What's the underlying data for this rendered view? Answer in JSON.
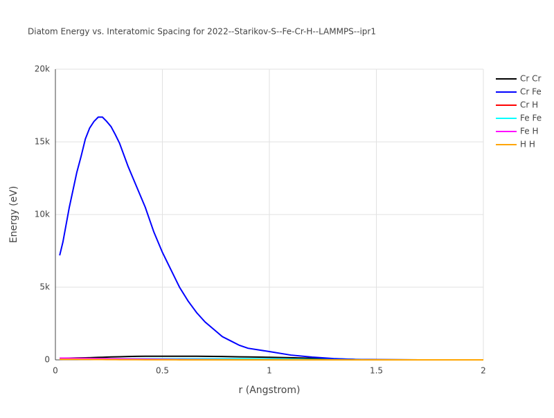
{
  "chart_data": {
    "type": "line",
    "title": "Diatom Energy vs. Interatomic Spacing for 2022--Starikov-S--Fe-Cr-H--LAMMPS--ipr1",
    "x_label": "r (Angstrom)",
    "y_label": "Energy (eV)",
    "x": [
      0.02,
      0.035,
      0.065,
      0.1,
      0.12,
      0.14,
      0.16,
      0.18,
      0.2,
      0.22,
      0.24,
      0.26,
      0.28,
      0.3,
      0.34,
      0.38,
      0.42,
      0.46,
      0.5,
      0.54,
      0.58,
      0.62,
      0.66,
      0.7,
      0.74,
      0.78,
      0.82,
      0.86,
      0.9,
      1.0,
      1.1,
      1.2,
      1.3,
      1.4,
      1.5,
      1.6,
      1.7,
      1.8,
      1.9,
      2.0
    ],
    "series": [
      {
        "name": "Cr Cr",
        "color": "#000000",
        "values": [
          110,
          115,
          120,
          130,
          135,
          140,
          150,
          160,
          170,
          180,
          190,
          200,
          210,
          215,
          230,
          245,
          250,
          250,
          250,
          250,
          250,
          250,
          250,
          245,
          240,
          230,
          220,
          210,
          200,
          180,
          150,
          110,
          70,
          30,
          10,
          5,
          2,
          1,
          0,
          0
        ]
      },
      {
        "name": "Cr Fe",
        "color": "#0000ff",
        "values": [
          7190,
          8100,
          10500,
          12900,
          14000,
          15200,
          15950,
          16400,
          16700,
          16700,
          16400,
          16050,
          15500,
          14900,
          13300,
          11900,
          10500,
          8800,
          7400,
          6200,
          5000,
          4050,
          3250,
          2600,
          2100,
          1600,
          1300,
          1000,
          800,
          570,
          330,
          190,
          90,
          30,
          10,
          5,
          2,
          1,
          0,
          0
        ]
      },
      {
        "name": "Cr H",
        "color": "#ff0000",
        "values": [
          90,
          88,
          85,
          82,
          80,
          78,
          75,
          72,
          70,
          67,
          64,
          61,
          58,
          55,
          50,
          45,
          40,
          35,
          30,
          26,
          22,
          18,
          15,
          12,
          10,
          8,
          6,
          5,
          4,
          2,
          1,
          0,
          0,
          0,
          0,
          0,
          0,
          0,
          0,
          0
        ]
      },
      {
        "name": "Fe Fe",
        "color": "#00ffff",
        "values": [
          80,
          80,
          80,
          80,
          80,
          80,
          80,
          80,
          80,
          80,
          80,
          80,
          80,
          80,
          80,
          80,
          80,
          80,
          80,
          80,
          80,
          80,
          80,
          80,
          80,
          80,
          80,
          80,
          80,
          70,
          50,
          30,
          10,
          5,
          2,
          1,
          0,
          0,
          0,
          0
        ]
      },
      {
        "name": "Fe H",
        "color": "#ff00ff",
        "values": [
          120,
          118,
          115,
          110,
          108,
          105,
          100,
          96,
          92,
          88,
          84,
          80,
          76,
          72,
          65,
          58,
          52,
          46,
          40,
          35,
          30,
          26,
          22,
          18,
          15,
          12,
          10,
          8,
          6,
          4,
          2,
          1,
          0,
          0,
          0,
          0,
          0,
          0,
          0,
          0
        ]
      },
      {
        "name": "H H",
        "color": "#ffa500",
        "values": [
          40,
          38,
          36,
          34,
          32,
          30,
          28,
          26,
          24,
          22,
          20,
          18,
          16,
          14,
          12,
          10,
          8,
          6,
          5,
          4,
          3,
          2,
          1,
          1,
          0,
          0,
          0,
          0,
          0,
          0,
          0,
          0,
          0,
          0,
          0,
          0,
          0,
          0,
          0,
          0
        ]
      }
    ],
    "xlim": [
      0,
      2
    ],
    "xticks": [
      0,
      0.5,
      1,
      1.5,
      2
    ],
    "ylim": [
      0,
      20000
    ],
    "yticks": [
      0,
      {
        "value": 5000,
        "label": "5k"
      },
      {
        "value": 10000,
        "label": "10k"
      },
      {
        "value": 15000,
        "label": "15k"
      },
      {
        "value": 20000,
        "label": "20k"
      }
    ],
    "grid": true
  }
}
